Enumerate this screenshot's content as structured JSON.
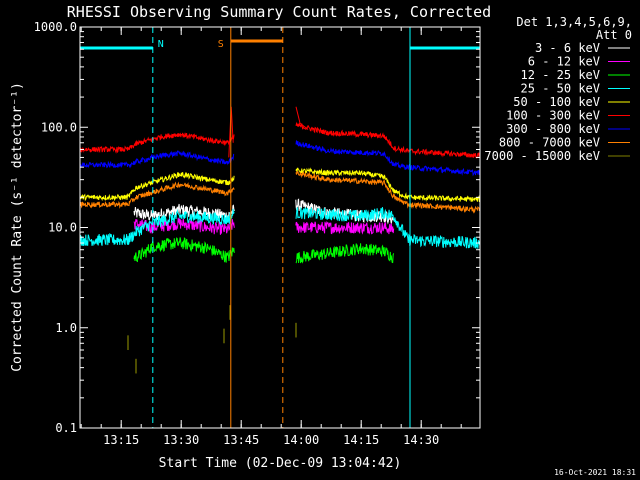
{
  "chart_data": {
    "type": "line",
    "title": "RHESSI Observing Summary Count Rates, Corrected",
    "xlabel": "Start Time (02-Dec-09 13:04:42)",
    "ylabel": "Corrected Count Rate (s⁻¹ detector⁻¹)",
    "ylog": true,
    "ylim": [
      0.1,
      1000
    ],
    "xlim_minutes": [
      0,
      100
    ],
    "x_ticks": [
      "13:15",
      "13:30",
      "13:45",
      "14:00",
      "14:15",
      "14:30"
    ],
    "x_tick_minutes": [
      10.3,
      25.3,
      40.3,
      55.3,
      70.3,
      85.3
    ],
    "y_ticks": [
      "0.1",
      "1.0",
      "10.0",
      "100.0",
      "1000.0"
    ],
    "y_tick_values": [
      0.1,
      1,
      10,
      100,
      1000
    ],
    "detectors": "Det 1,3,4,5,6,9,",
    "attenuator": "Att 0",
    "timestamp": "16-Oct-2021 18:31",
    "series": [
      {
        "name": "3 - 6 keV",
        "color": "#ffffff",
        "points": [
          [
            13.5,
            14
          ],
          [
            18,
            13
          ],
          [
            25,
            15
          ],
          [
            32,
            14
          ],
          [
            37,
            13
          ],
          [
            38.5,
            15
          ],
          [
            54,
            17
          ],
          [
            62,
            14
          ],
          [
            70,
            13
          ],
          [
            76,
            13
          ],
          [
            78.5,
            12
          ]
        ]
      },
      {
        "name": "6 - 12 keV",
        "color": "#ff00ff",
        "points": [
          [
            13.5,
            11
          ],
          [
            18,
            10
          ],
          [
            25,
            11
          ],
          [
            32,
            10
          ],
          [
            37,
            9.5
          ],
          [
            38.5,
            11
          ],
          [
            54,
            10
          ],
          [
            62,
            10
          ],
          [
            70,
            10
          ],
          [
            76,
            10
          ],
          [
            78.5,
            9.5
          ]
        ]
      },
      {
        "name": "12 - 25 keV",
        "color": "#00ff00",
        "points": [
          [
            13.5,
            5
          ],
          [
            16,
            5.5
          ],
          [
            18,
            6.5
          ],
          [
            25,
            7
          ],
          [
            32,
            6.2
          ],
          [
            37,
            5
          ],
          [
            38.5,
            6
          ],
          [
            54,
            5
          ],
          [
            62,
            5.5
          ],
          [
            70,
            6.2
          ],
          [
            76,
            5.8
          ],
          [
            78.5,
            5
          ]
        ]
      },
      {
        "name": "25 - 50 keV",
        "color": "#00ffff",
        "points": [
          [
            0,
            7.5
          ],
          [
            12,
            7.5
          ],
          [
            14,
            9
          ],
          [
            18,
            11
          ],
          [
            25,
            13
          ],
          [
            32,
            12.5
          ],
          [
            37,
            12
          ],
          [
            38.5,
            14
          ],
          [
            54,
            14
          ],
          [
            62,
            13.5
          ],
          [
            70,
            13
          ],
          [
            76,
            14
          ],
          [
            78.5,
            13
          ],
          [
            82,
            7.5
          ],
          [
            100,
            7
          ]
        ]
      },
      {
        "name": "50 - 100 keV",
        "color": "#ffff00",
        "points": [
          [
            0,
            20
          ],
          [
            12,
            20
          ],
          [
            14,
            25
          ],
          [
            25,
            34
          ],
          [
            32,
            30
          ],
          [
            37,
            28
          ],
          [
            38.5,
            31
          ],
          [
            54,
            37
          ],
          [
            62,
            35
          ],
          [
            70,
            35
          ],
          [
            76,
            32
          ],
          [
            78.5,
            23
          ],
          [
            82,
            20
          ],
          [
            100,
            19
          ]
        ]
      },
      {
        "name": "100 - 300 keV",
        "color": "#ff0000",
        "points": [
          [
            0,
            60
          ],
          [
            12,
            60
          ],
          [
            14,
            68
          ],
          [
            20,
            80
          ],
          [
            25,
            85
          ],
          [
            32,
            75
          ],
          [
            37,
            70
          ],
          [
            38.5,
            80
          ],
          [
            54,
            105
          ],
          [
            62,
            88
          ],
          [
            70,
            85
          ],
          [
            76,
            82
          ],
          [
            78.5,
            62
          ],
          [
            82,
            58
          ],
          [
            100,
            52
          ]
        ]
      },
      {
        "name": "300 - 800 keV",
        "color": "#0000ff",
        "points": [
          [
            0,
            42
          ],
          [
            12,
            42
          ],
          [
            14,
            45
          ],
          [
            20,
            52
          ],
          [
            25,
            55
          ],
          [
            32,
            48
          ],
          [
            37,
            44
          ],
          [
            38.5,
            52
          ],
          [
            54,
            70
          ],
          [
            62,
            58
          ],
          [
            70,
            56
          ],
          [
            76,
            55
          ],
          [
            78.5,
            42
          ],
          [
            82,
            40
          ],
          [
            100,
            35
          ]
        ]
      },
      {
        "name": "800 - 7000 keV",
        "color": "#ff8000",
        "points": [
          [
            0,
            17
          ],
          [
            12,
            17
          ],
          [
            14,
            20
          ],
          [
            25,
            27
          ],
          [
            32,
            24
          ],
          [
            37,
            22
          ],
          [
            38.5,
            25
          ],
          [
            54,
            35
          ],
          [
            62,
            30
          ],
          [
            70,
            29
          ],
          [
            76,
            28
          ],
          [
            78.5,
            20
          ],
          [
            82,
            17
          ],
          [
            100,
            15
          ]
        ]
      },
      {
        "name": "7000 - 15000 keV",
        "color": "#808000",
        "points": [
          [
            12,
            0.6
          ],
          [
            14,
            0.35
          ],
          [
            36,
            0.7
          ],
          [
            37.5,
            1.2
          ],
          [
            54,
            0.8
          ]
        ]
      }
    ],
    "flags": [
      {
        "label": "N",
        "color": "#00ffff",
        "segments": [
          [
            0,
            18.2
          ],
          [
            82.5,
            100
          ]
        ]
      },
      {
        "label": "S",
        "color": "#ff8000",
        "segments": [
          [
            37.7,
            50.7
          ]
        ]
      }
    ]
  }
}
